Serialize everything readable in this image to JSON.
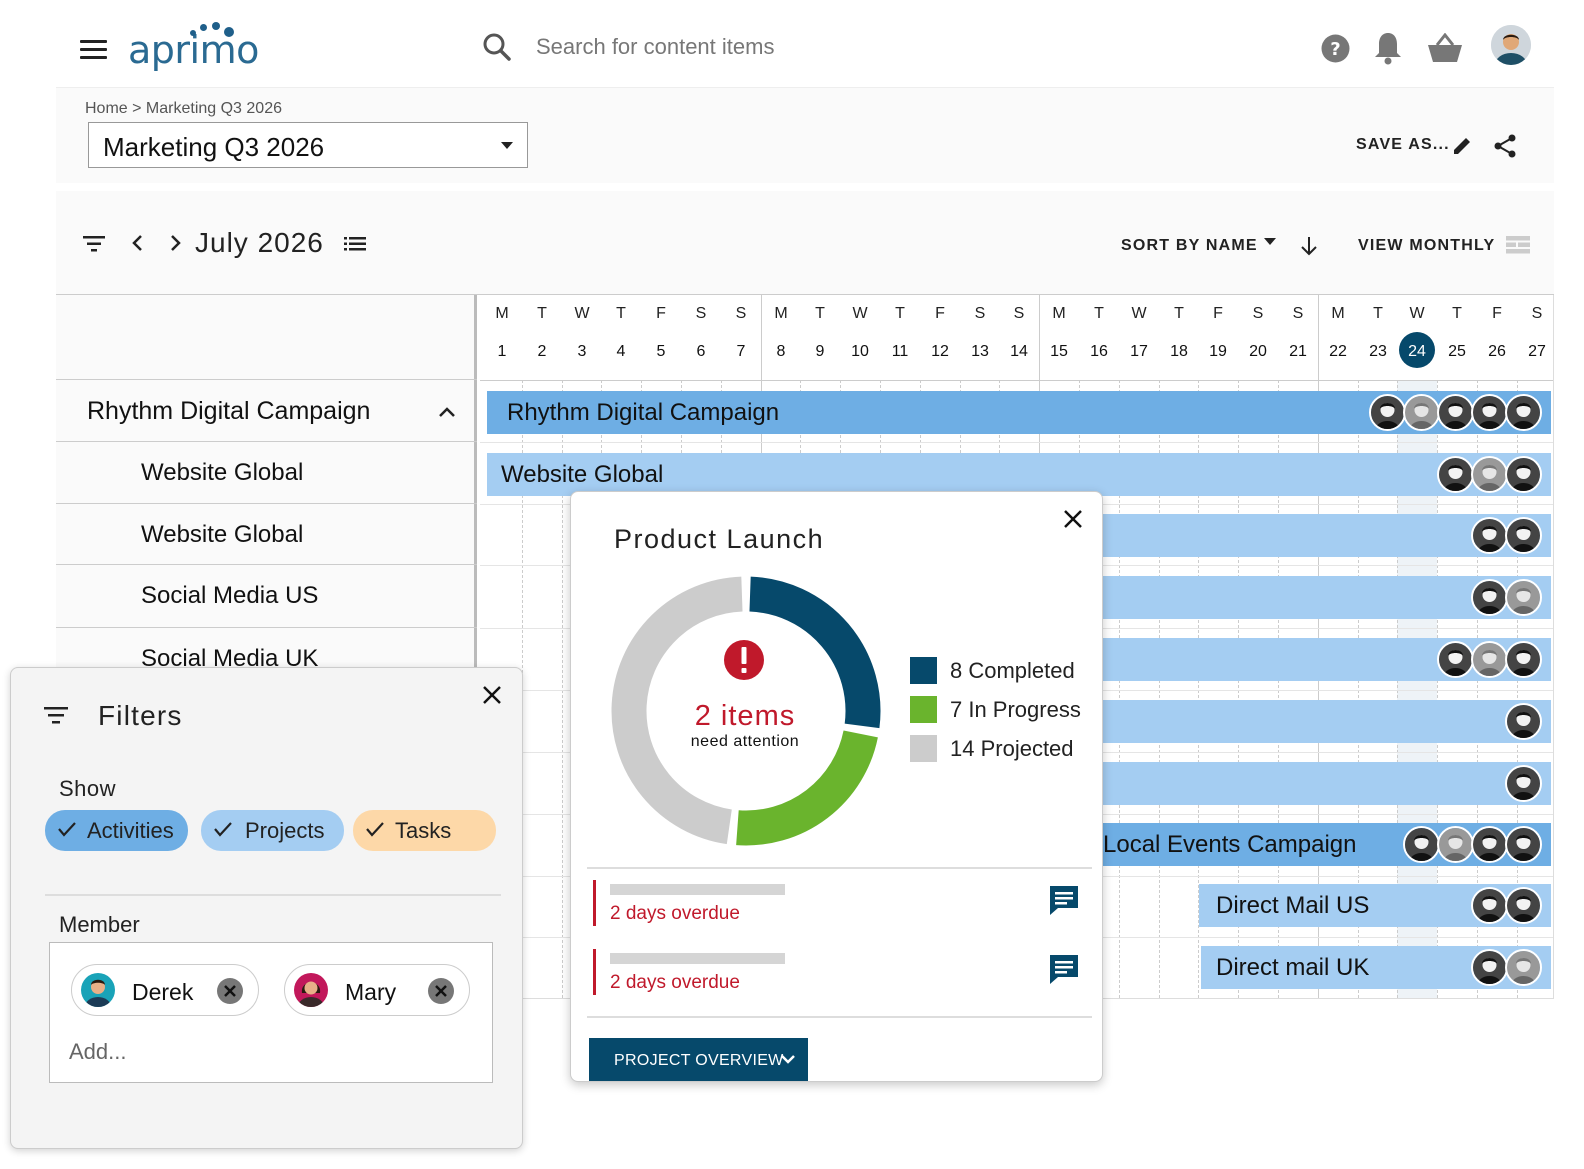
{
  "app": {
    "logo_text": "aprimo",
    "search_placeholder": "Search for content items",
    "icons": [
      "menu-icon",
      "search-icon",
      "help-icon",
      "bell-icon",
      "basket-icon",
      "user-avatar"
    ]
  },
  "header": {
    "breadcrumb": "Home > Marketing Q3 2026",
    "project": "Marketing Q3 2026",
    "save_as": "SAVE AS..."
  },
  "toolbar": {
    "month": "July 2026",
    "sort": "SORT BY NAME",
    "view": "VIEW MONTHLY"
  },
  "calendar": {
    "days": [
      {
        "l": "M",
        "n": "1"
      },
      {
        "l": "T",
        "n": "2"
      },
      {
        "l": "W",
        "n": "3"
      },
      {
        "l": "T",
        "n": "4"
      },
      {
        "l": "F",
        "n": "5"
      },
      {
        "l": "S",
        "n": "6"
      },
      {
        "l": "S",
        "n": "7"
      },
      {
        "l": "M",
        "n": "8"
      },
      {
        "l": "T",
        "n": "9"
      },
      {
        "l": "W",
        "n": "10"
      },
      {
        "l": "T",
        "n": "11"
      },
      {
        "l": "F",
        "n": "12"
      },
      {
        "l": "S",
        "n": "13"
      },
      {
        "l": "S",
        "n": "14"
      },
      {
        "l": "M",
        "n": "15"
      },
      {
        "l": "T",
        "n": "16"
      },
      {
        "l": "W",
        "n": "17"
      },
      {
        "l": "T",
        "n": "18"
      },
      {
        "l": "F",
        "n": "19"
      },
      {
        "l": "S",
        "n": "20"
      },
      {
        "l": "S",
        "n": "21"
      },
      {
        "l": "M",
        "n": "22"
      },
      {
        "l": "T",
        "n": "23"
      },
      {
        "l": "W",
        "n": "24"
      },
      {
        "l": "T",
        "n": "25"
      },
      {
        "l": "F",
        "n": "26"
      },
      {
        "l": "S",
        "n": "27"
      }
    ],
    "today": "24"
  },
  "rows": [
    {
      "label": "Rhythm Digital Campaign",
      "group": true
    },
    {
      "label": "Website Global"
    },
    {
      "label": "Website Global"
    },
    {
      "label": "Social Media US"
    },
    {
      "label": "Social Media UK"
    }
  ],
  "bars": [
    {
      "label": "Rhythm Digital Campaign",
      "avatars": 5
    },
    {
      "label": "Website Global",
      "avatars": 3
    },
    {
      "label": "",
      "avatars": 2
    },
    {
      "label": "",
      "avatars": 2
    },
    {
      "label": "",
      "avatars": 3
    },
    {
      "label": "",
      "avatars": 1
    },
    {
      "label": "",
      "avatars": 1
    },
    {
      "label": "Local Events Campaign",
      "avatars": 4
    },
    {
      "label": "Direct Mail US",
      "avatars": 2
    },
    {
      "label": "Direct mail UK",
      "avatars": 2
    }
  ],
  "filters": {
    "title": "Filters",
    "show_label": "Show",
    "chips": [
      {
        "label": "Activities",
        "color": "#6eaee4"
      },
      {
        "label": "Projects",
        "color": "#a4cdf2"
      },
      {
        "label": "Tasks",
        "color": "#fdd8a8"
      }
    ],
    "member_label": "Member",
    "members": [
      "Derek",
      "Mary"
    ],
    "add_placeholder": "Add..."
  },
  "popup": {
    "title": "Product Launch",
    "attention_count": "2 items",
    "attention_sub": "need attention",
    "legend": [
      {
        "label": "8 Completed",
        "value": 8,
        "color": "#06496b"
      },
      {
        "label": "7 In Progress",
        "value": 7,
        "color": "#6ab42d"
      },
      {
        "label": "14 Projected",
        "value": 14,
        "color": "#cccccc"
      }
    ],
    "overdue": [
      "2 days overdue",
      "2 days overdue"
    ],
    "overview_button": "PROJECT OVERVIEW"
  },
  "colors": {
    "brand_dark": "#06496b",
    "bar_dark": "#6eaee4",
    "bar_light": "#a4cdf2",
    "alert_red": "#c0192b"
  }
}
